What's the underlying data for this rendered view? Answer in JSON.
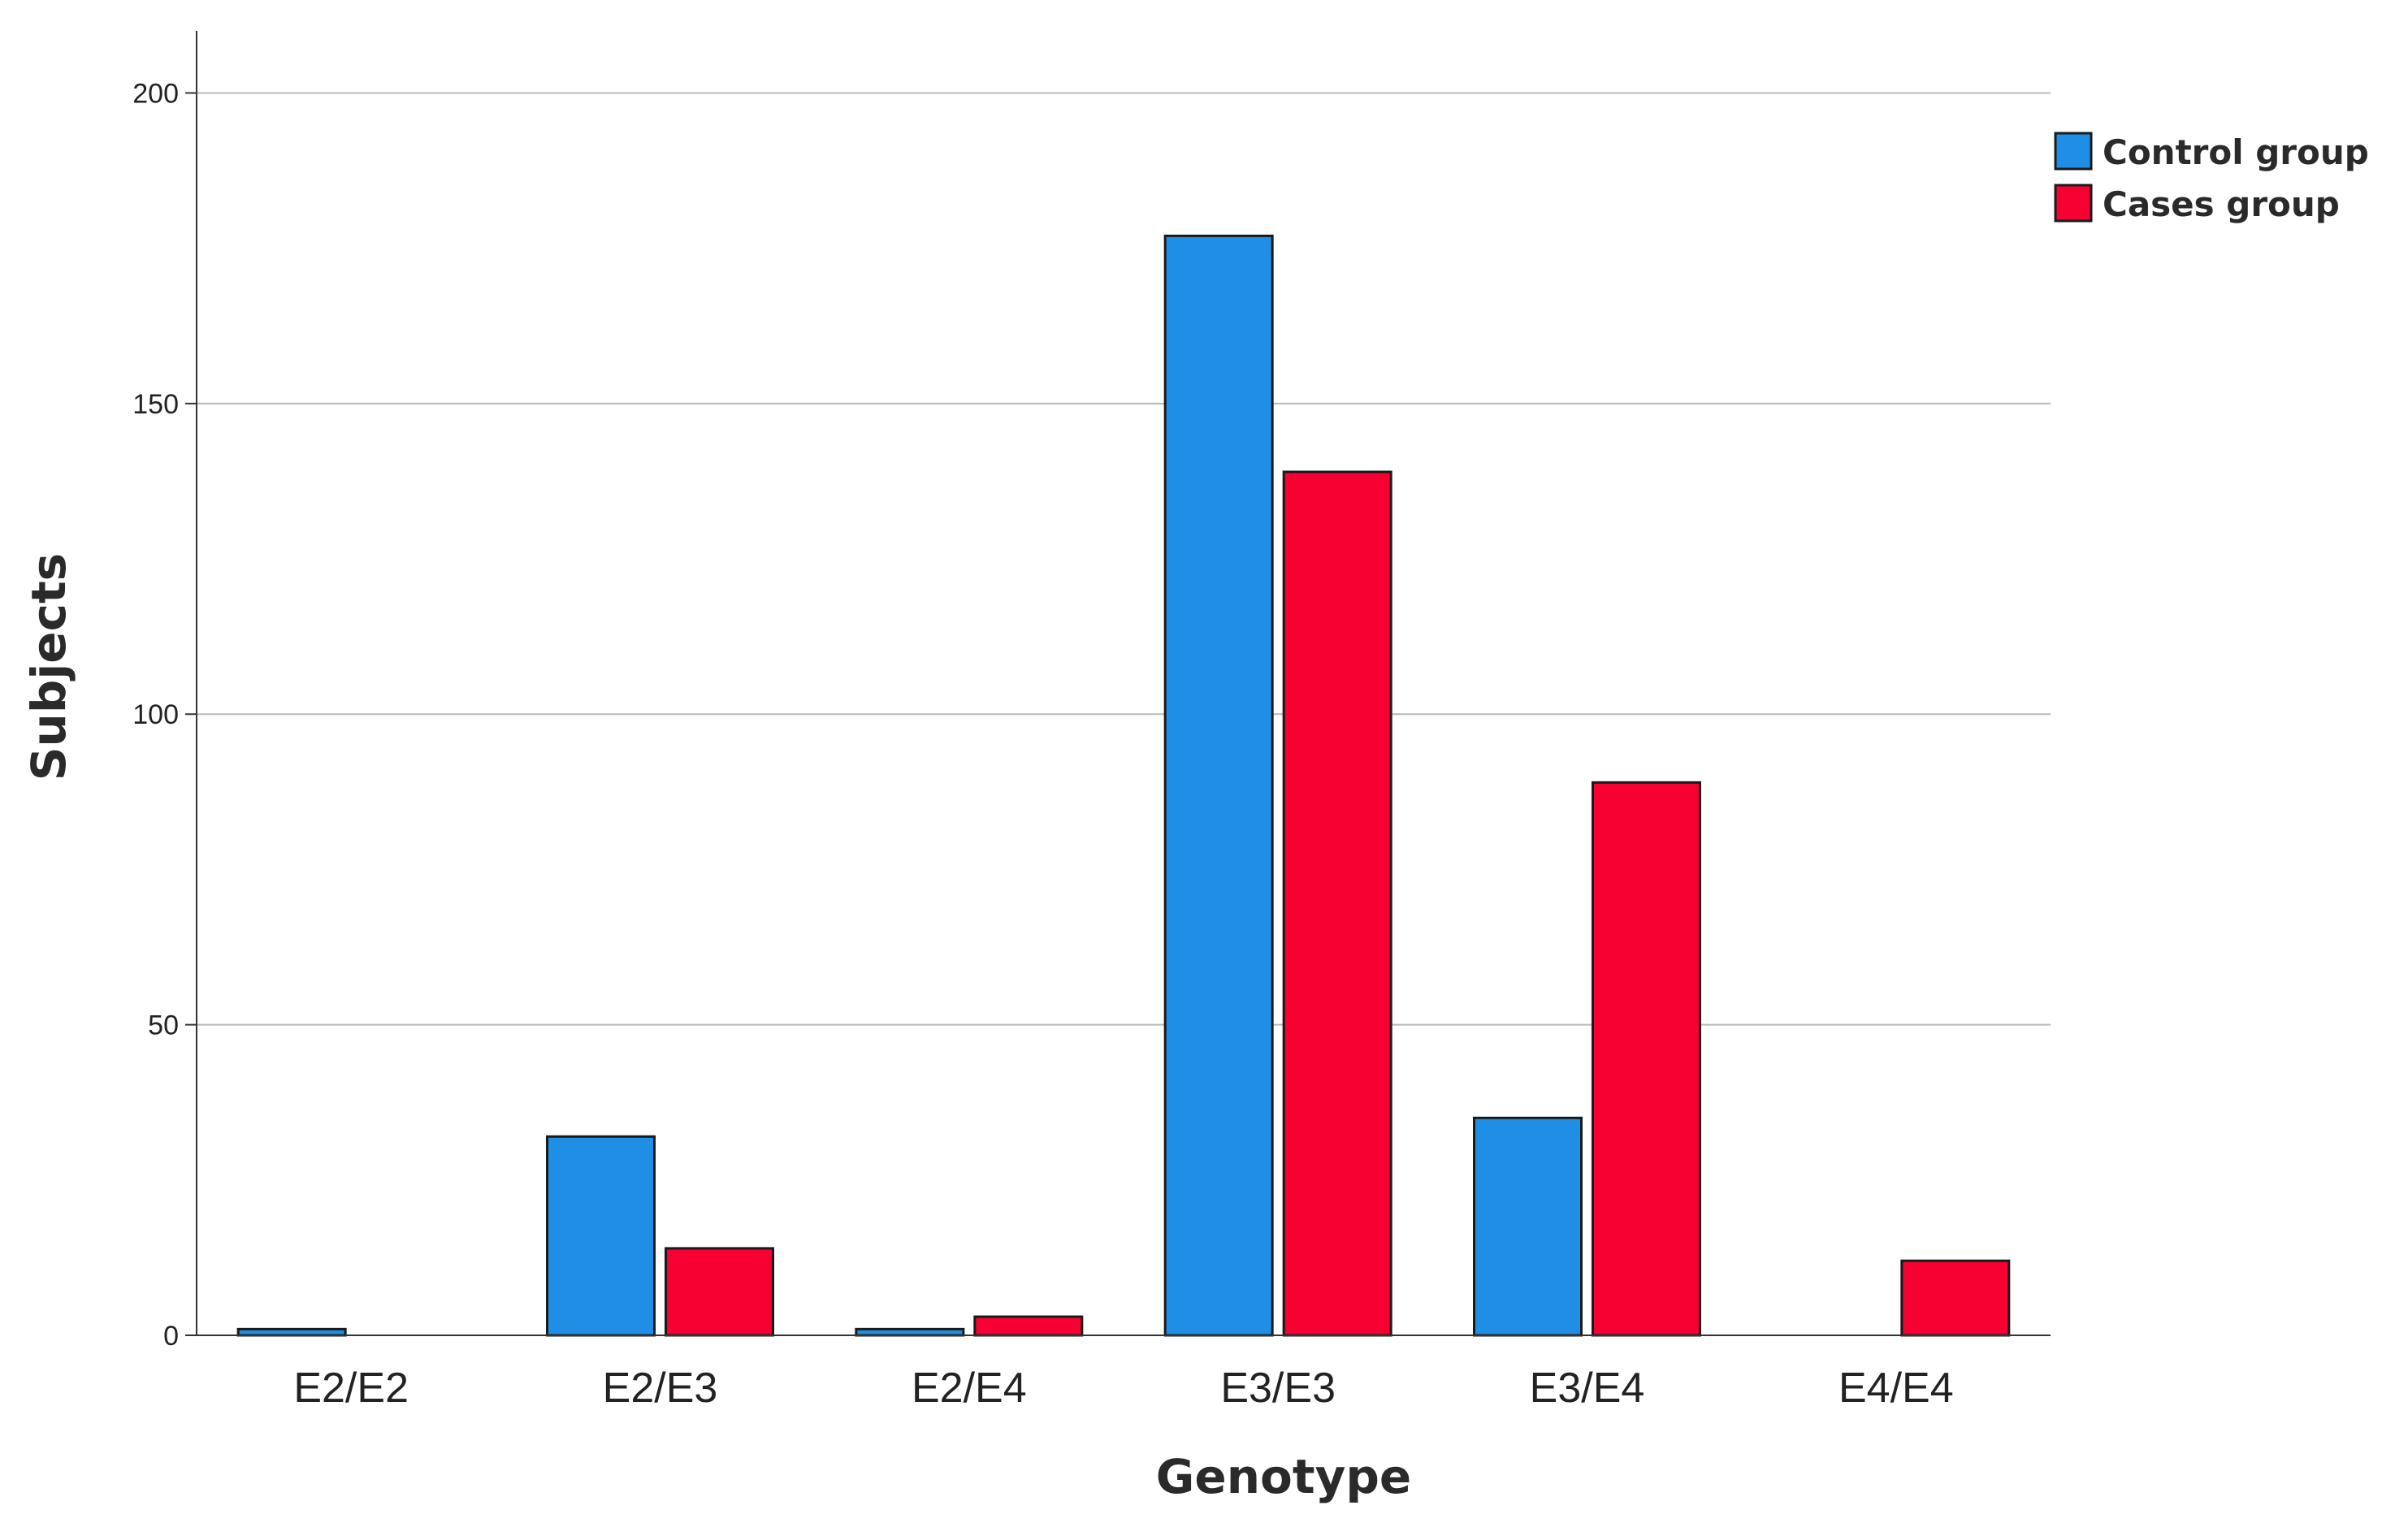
{
  "chart_data": {
    "type": "bar",
    "title": "",
    "xlabel": "Genotype",
    "ylabel": "Subjects",
    "categories": [
      "E2/E2",
      "E2/E3",
      "E2/E4",
      "E3/E3",
      "E3/E4",
      "E4/E4"
    ],
    "series": [
      {
        "name": "Control group",
        "color": "#1f8fe5",
        "values": [
          1,
          32,
          1,
          177,
          35,
          0
        ]
      },
      {
        "name": "Cases group",
        "color": "#f70132",
        "values": [
          0,
          14,
          3,
          139,
          89,
          12
        ]
      }
    ],
    "ylim": [
      0,
      210
    ],
    "yticks": [
      0,
      50,
      100,
      150,
      200
    ],
    "grid": true,
    "legend_position": "top-right"
  }
}
